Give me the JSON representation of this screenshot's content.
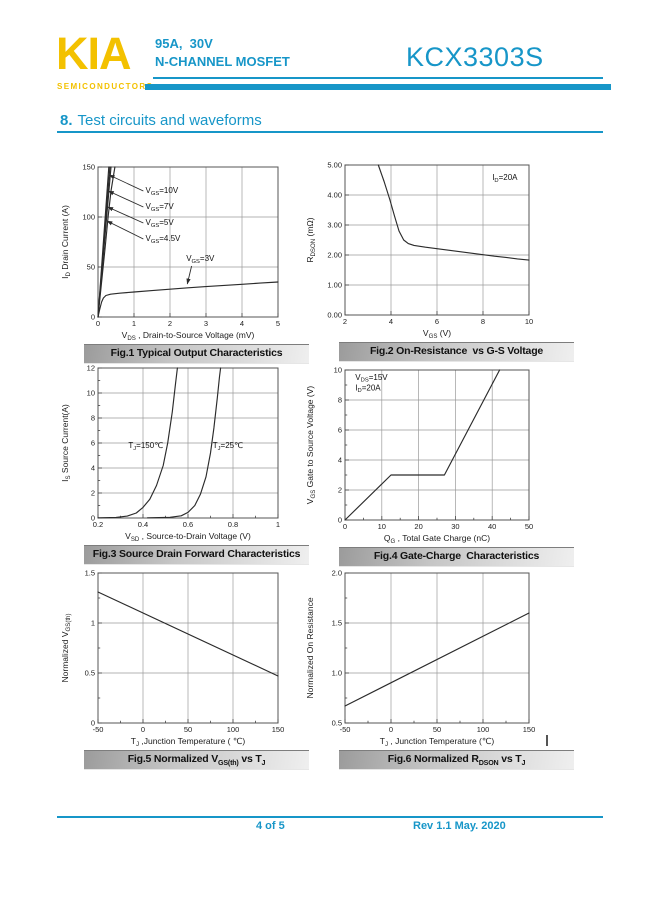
{
  "header": {
    "logo_text": "KIA",
    "logo_subtext": "SEMICONDUCTORS",
    "rating_line": "95A,  30V",
    "device_type": "N-CHANNEL MOSFET",
    "part_number": "KCX3303S"
  },
  "section_heading": {
    "number": "8.",
    "title": "Test circuits and waveforms"
  },
  "footer": {
    "page_indicator": "4 of 5",
    "revision": "Rev 1.1 May. 2020"
  },
  "colors": {
    "accent_cyan": "#1796C8",
    "logo_yellow": "#F3C100",
    "caption_bar_gray": "#BDBDBD",
    "curve_ink": "#2B2B2B",
    "grid_gray": "#9A9A9A"
  },
  "chart_data": [
    {
      "type": "line",
      "caption": "Fig.1 Typical Output Characteristics",
      "xlabel": "V_{DS}  , Drain-to-Source Voltage (mV)",
      "ylabel": "I_{D} Drain Current (A)",
      "xlim": [
        0,
        5
      ],
      "ylim": [
        0,
        150
      ],
      "xticks": [
        0,
        1,
        2,
        3,
        4,
        5
      ],
      "xtick_labels": [
        "0",
        "1",
        "2",
        "3",
        "4",
        "5"
      ],
      "yticks": [
        0,
        50,
        100,
        150
      ],
      "ytick_labels": [
        "0",
        "50",
        "100",
        "150"
      ],
      "xgrid": [
        1,
        2,
        3,
        4
      ],
      "ygrid": [
        50,
        100
      ],
      "series": [
        {
          "name": "VGS=10V",
          "points": [
            [
              0,
              0
            ],
            [
              0.3,
              150
            ]
          ]
        },
        {
          "name": "VGS=7V",
          "points": [
            [
              0,
              0
            ],
            [
              0.33,
              150
            ]
          ]
        },
        {
          "name": "VGS=5V",
          "points": [
            [
              0,
              0
            ],
            [
              0.36,
              150
            ]
          ]
        },
        {
          "name": "VGS=4.5V",
          "points": [
            [
              0,
              0
            ],
            [
              0.2,
              70
            ],
            [
              0.28,
              100
            ],
            [
              0.36,
              126
            ],
            [
              0.47,
              150
            ]
          ]
        },
        {
          "name": "VGS=3V",
          "points": [
            [
              0,
              0
            ],
            [
              0.05,
              8
            ],
            [
              0.1,
              15
            ],
            [
              0.15,
              19
            ],
            [
              0.22,
              21.5
            ],
            [
              0.35,
              22.8
            ],
            [
              0.6,
              23.8
            ],
            [
              1,
              25
            ],
            [
              1.5,
              26.4
            ],
            [
              2,
              27.8
            ],
            [
              2.5,
              29.2
            ],
            [
              3,
              30.4
            ],
            [
              3.5,
              31.6
            ],
            [
              4,
              32.7
            ],
            [
              4.5,
              33.9
            ],
            [
              5,
              35
            ]
          ]
        }
      ],
      "annotations": [
        {
          "text": "V_{GS}=10V",
          "x": 1.32,
          "y": 124
        },
        {
          "text": "V_{GS}=7V",
          "x": 1.32,
          "y": 108
        },
        {
          "text": "V_{GS}=5V",
          "x": 1.32,
          "y": 92
        },
        {
          "text": "V_{GS}=4.5V",
          "x": 1.32,
          "y": 76
        },
        {
          "text": "V_{GS}=3V",
          "x": 2.45,
          "y": 56
        }
      ],
      "arrows": [
        {
          "from": [
            1.26,
            126
          ],
          "to": [
            0.31,
            142
          ]
        },
        {
          "from": [
            1.26,
            110
          ],
          "to": [
            0.29,
            126
          ]
        },
        {
          "from": [
            1.26,
            94
          ],
          "to": [
            0.27,
            110
          ]
        },
        {
          "from": [
            1.26,
            78
          ],
          "to": [
            0.25,
            96
          ]
        },
        {
          "from": [
            2.6,
            51
          ],
          "to": [
            2.48,
            33
          ]
        }
      ]
    },
    {
      "type": "line",
      "caption": "Fig.2 On-Resistance  vs G-S Voltage",
      "xlabel": "V_{GS} (V)",
      "ylabel": "R_{DSON} (mΩ)",
      "xlim": [
        2,
        10
      ],
      "ylim": [
        0,
        5
      ],
      "xticks": [
        2,
        4,
        6,
        8,
        10
      ],
      "xtick_labels": [
        "2",
        "4",
        "6",
        "8",
        "10"
      ],
      "yticks": [
        0,
        1,
        2,
        3,
        4,
        5
      ],
      "ytick_labels": [
        "0.00",
        "1.00",
        "2.00",
        "3.00",
        "4.00",
        "5.00"
      ],
      "xgrid": [
        4,
        6,
        8
      ],
      "ygrid": [
        1,
        2,
        3,
        4
      ],
      "series": [
        {
          "name": "RDSON",
          "points": [
            [
              3.45,
              5.0
            ],
            [
              3.7,
              4.45
            ],
            [
              3.95,
              3.85
            ],
            [
              4.15,
              3.3
            ],
            [
              4.35,
              2.8
            ],
            [
              4.55,
              2.5
            ],
            [
              4.75,
              2.38
            ],
            [
              5.0,
              2.32
            ],
            [
              5.5,
              2.26
            ],
            [
              6,
              2.21
            ],
            [
              6.5,
              2.16
            ],
            [
              7,
              2.11
            ],
            [
              7.5,
              2.06
            ],
            [
              8,
              2.01
            ],
            [
              8.5,
              1.96
            ],
            [
              9,
              1.92
            ],
            [
              9.5,
              1.87
            ],
            [
              10,
              1.83
            ]
          ]
        }
      ],
      "annotations": [
        {
          "text": "I_{D}=20A",
          "x": 8.4,
          "y": 4.5
        }
      ]
    },
    {
      "type": "line",
      "caption": "Fig.3 Source Drain Forward Characteristics",
      "xlabel": "V_{SD} , Source-to-Drain Voltage (V)",
      "ylabel": "I_{S} Source Current(A)",
      "xlim": [
        0.2,
        1
      ],
      "ylim": [
        0,
        12
      ],
      "xticks": [
        0.2,
        0.4,
        0.6,
        0.8,
        1
      ],
      "xtick_labels": [
        "0.2",
        "0.4",
        "0.6",
        "0.8",
        "1"
      ],
      "yticks": [
        0,
        2,
        4,
        6,
        8,
        10,
        12
      ],
      "ytick_labels": [
        "0",
        "2",
        "4",
        "6",
        "8",
        "10",
        "12"
      ],
      "xgrid": [
        0.4,
        0.6,
        0.8
      ],
      "ygrid": [
        2,
        4,
        6,
        8,
        10
      ],
      "xminor": [
        0.3,
        0.5,
        0.7,
        0.9
      ],
      "yminor": [
        1,
        3,
        5,
        7,
        9,
        11
      ],
      "series": [
        {
          "name": "TJ=150C",
          "points": [
            [
              0.2,
              0.02
            ],
            [
              0.28,
              0.05
            ],
            [
              0.33,
              0.15
            ],
            [
              0.37,
              0.4
            ],
            [
              0.4,
              0.85
            ],
            [
              0.43,
              1.5
            ],
            [
              0.46,
              2.6
            ],
            [
              0.49,
              4.2
            ],
            [
              0.51,
              6
            ],
            [
              0.53,
              8.5
            ],
            [
              0.545,
              10.8
            ],
            [
              0.553,
              12
            ]
          ]
        },
        {
          "name": "TJ=25C",
          "points": [
            [
              0.42,
              0.02
            ],
            [
              0.52,
              0.06
            ],
            [
              0.57,
              0.18
            ],
            [
              0.6,
              0.45
            ],
            [
              0.63,
              1.0
            ],
            [
              0.655,
              1.9
            ],
            [
              0.68,
              3.3
            ],
            [
              0.7,
              5.2
            ],
            [
              0.715,
              7.2
            ],
            [
              0.73,
              9.6
            ],
            [
              0.74,
              11.3
            ],
            [
              0.745,
              12
            ]
          ]
        }
      ],
      "annotations": [
        {
          "text": "T_{J}=150℃",
          "x": 0.335,
          "y": 5.6
        },
        {
          "text": "T_{J}=25℃",
          "x": 0.71,
          "y": 5.6
        }
      ]
    },
    {
      "type": "line",
      "caption": "Fig.4 Gate-Charge  Characteristics",
      "xlabel": "Q_{G} , Total Gate Charge (nC)",
      "ylabel": "V_{GS}  Gate to Source Voltage (V)",
      "xlim": [
        0,
        50
      ],
      "ylim": [
        0,
        10
      ],
      "xticks": [
        0,
        10,
        20,
        30,
        40,
        50
      ],
      "xtick_labels": [
        "0",
        "10",
        "20",
        "30",
        "40",
        "50"
      ],
      "yticks": [
        0,
        2,
        4,
        6,
        8,
        10
      ],
      "ytick_labels": [
        "0",
        "2",
        "4",
        "6",
        "8",
        "10"
      ],
      "xgrid": [
        10,
        20,
        30,
        40
      ],
      "ygrid": [
        2,
        4,
        6,
        8
      ],
      "xminor": [
        5,
        15,
        25,
        35,
        45
      ],
      "yminor": [
        1,
        3,
        5,
        7,
        9
      ],
      "series": [
        {
          "name": "gate-charge",
          "points": [
            [
              0,
              0
            ],
            [
              12.5,
              3.0
            ],
            [
              27,
              3.0
            ],
            [
              42,
              10
            ]
          ]
        }
      ],
      "annotations": [
        {
          "text": "V_{DS}=15V\nI_{D}=20A",
          "x": 2.8,
          "y": 9.35
        }
      ]
    },
    {
      "type": "line",
      "caption": "Fig.5 Normalized V_{GS(th)} vs T_{J}",
      "xlabel": "T_{J} ,Junction Temperature ( ℃)",
      "ylabel": "Normalized V_{GS(th)}",
      "xlim": [
        -50,
        150
      ],
      "ylim": [
        0,
        1.5
      ],
      "xticks": [
        -50,
        0,
        50,
        100,
        150
      ],
      "xtick_labels": [
        "-50",
        "0",
        "50",
        "100",
        "150"
      ],
      "yticks": [
        0,
        0.5,
        1,
        1.5
      ],
      "ytick_labels": [
        "0",
        "0.5",
        "1",
        "1.5"
      ],
      "xgrid": [
        0,
        50,
        100
      ],
      "ygrid": [
        0.5,
        1
      ],
      "xminor": [
        -25,
        25,
        75,
        125
      ],
      "yminor": [
        0.25,
        0.75,
        1.25
      ],
      "series": [
        {
          "name": "normalized-vgsth",
          "points": [
            [
              -50,
              1.31
            ],
            [
              150,
              0.47
            ]
          ]
        }
      ]
    },
    {
      "type": "line",
      "caption": "Fig.6 Normalized R_{DSON} vs T_{J}",
      "xlabel": "T_{J} , Junction Temperature (℃)",
      "ylabel": "Normalized On Resistance",
      "xlim": [
        -50,
        150
      ],
      "ylim": [
        0.5,
        2
      ],
      "xticks": [
        -50,
        0,
        50,
        100,
        150
      ],
      "xtick_labels": [
        "-50",
        "0",
        "50",
        "100",
        "150"
      ],
      "yticks": [
        0.5,
        1,
        1.5,
        2
      ],
      "ytick_labels": [
        "0.5",
        "1.0",
        "1.5",
        "2.0"
      ],
      "xgrid": [
        0,
        50,
        100
      ],
      "ygrid": [
        1,
        1.5
      ],
      "xminor": [
        -25,
        25,
        75,
        125
      ],
      "yminor": [
        0.75,
        1.25,
        1.75
      ],
      "series": [
        {
          "name": "normalized-rdson",
          "points": [
            [
              -50,
              0.67
            ],
            [
              150,
              1.6
            ]
          ]
        }
      ]
    }
  ]
}
